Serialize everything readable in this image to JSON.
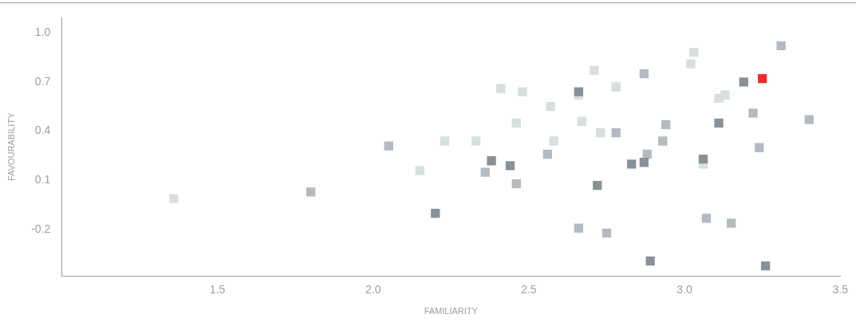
{
  "chart_data": {
    "type": "scatter",
    "xlabel": "FAMILIARITY",
    "ylabel": "FAVOURABILITY",
    "xlim": [
      1.0,
      3.5
    ],
    "ylim": [
      -0.48,
      1.09
    ],
    "xticks": [
      1.5,
      {
        "value": 2,
        "label": "2.0"
      },
      2.5,
      {
        "value": 3,
        "label": "3.0"
      },
      3.5
    ],
    "yticks": [
      {
        "value": 1,
        "label": "1.0"
      },
      0.7,
      0.4,
      0.1,
      -0.2
    ],
    "grid": false,
    "legend": false,
    "marker": "square",
    "series": [
      {
        "color": "#d9dede",
        "x": [
          1.36,
          2.15,
          2.23,
          2.33,
          2.41,
          2.46,
          2.48,
          2.57,
          2.58,
          2.66,
          2.67,
          2.71,
          2.73,
          2.78,
          3.02,
          3.03,
          3.06,
          3.11,
          3.13
        ],
        "values": [
          -0.01,
          0.16,
          0.34,
          0.34,
          0.66,
          0.45,
          0.64,
          0.55,
          0.34,
          0.62,
          0.46,
          0.77,
          0.39,
          0.67,
          0.81,
          0.88,
          0.2,
          0.6,
          0.62
        ]
      },
      {
        "color": "#b4babf",
        "x": [
          1.8,
          2.05,
          2.36,
          2.46,
          2.56,
          2.66,
          2.75,
          2.78,
          2.87,
          2.88,
          2.93,
          2.94,
          3.07,
          3.15,
          3.22,
          3.24,
          3.31,
          3.4
        ],
        "values": [
          0.03,
          0.31,
          0.15,
          0.08,
          0.26,
          -0.19,
          -0.22,
          0.39,
          0.75,
          0.26,
          0.34,
          0.44,
          -0.13,
          -0.16,
          0.51,
          0.3,
          0.92,
          0.47
        ]
      },
      {
        "color": "#8a9196",
        "x": [
          2.2,
          2.38,
          2.44,
          2.66,
          2.72,
          2.83,
          2.87,
          2.89,
          3.06,
          3.11,
          3.19,
          3.26
        ],
        "values": [
          -0.1,
          0.22,
          0.19,
          0.64,
          0.07,
          0.2,
          0.21,
          -0.39,
          0.23,
          0.45,
          0.7,
          -0.42
        ]
      },
      {
        "color": "#ee2a2f",
        "x": [
          3.25
        ],
        "values": [
          0.72
        ]
      }
    ]
  }
}
